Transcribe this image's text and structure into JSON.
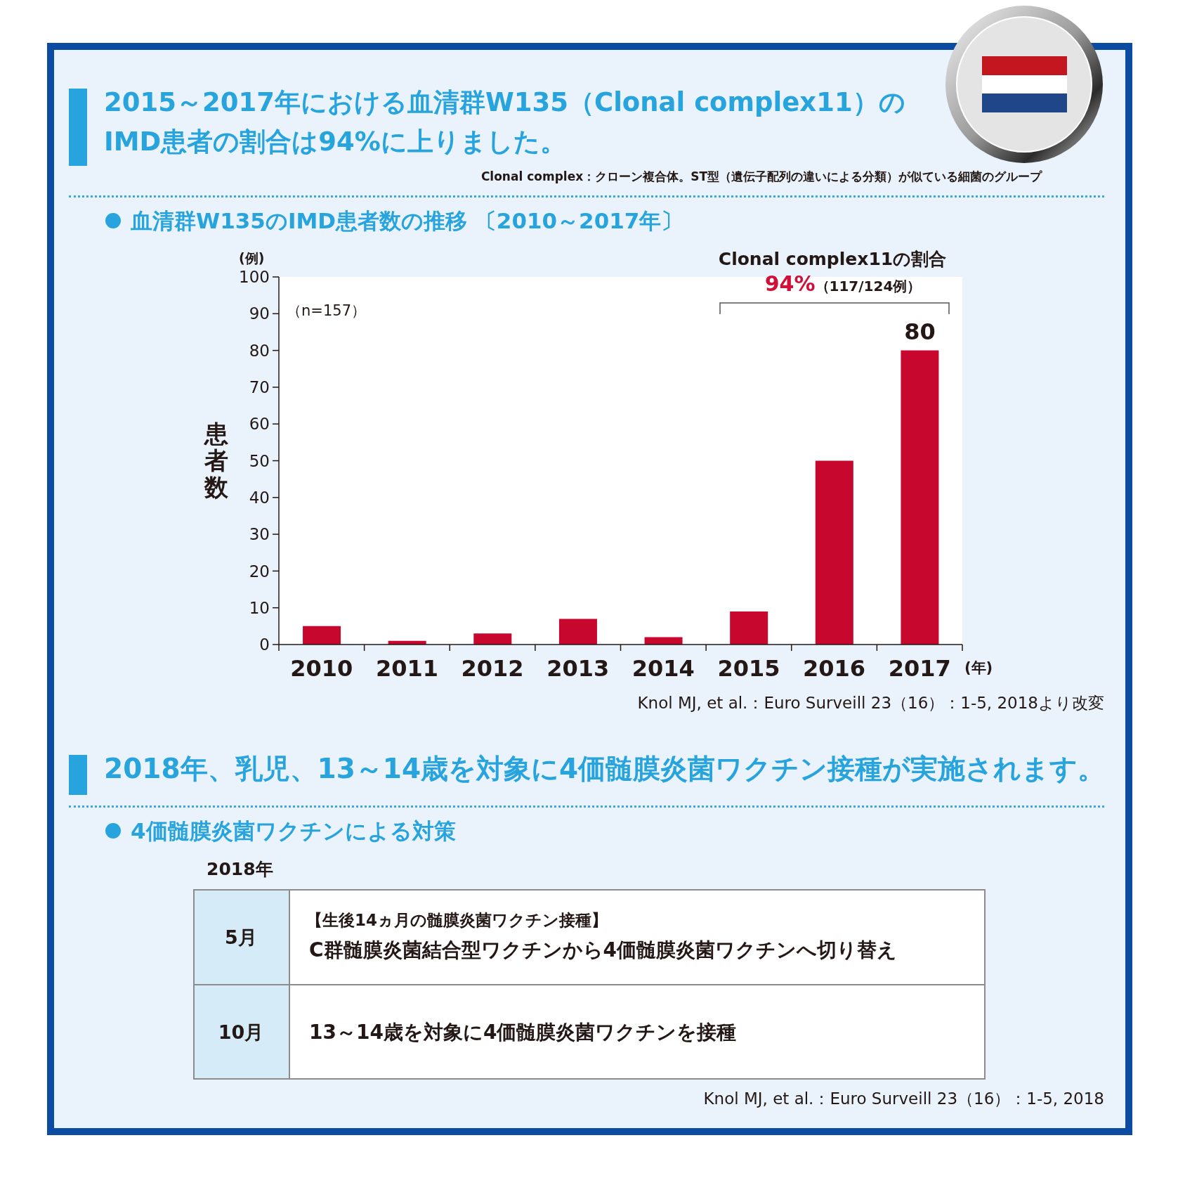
{
  "chart_data": [
    {
      "type": "bar",
      "title": "2015～2017年における血清群W135（Clonal complex11）のIMD患者の割合は94%に上りました。",
      "subtitle": "血清群W135のIMD患者数の推移 〔2010～2017年〕",
      "xlabel": "(年)",
      "ylabel": "患者数",
      "categories": [
        "2010",
        "2011",
        "2012",
        "2013",
        "2014",
        "2015",
        "2016",
        "2017"
      ],
      "values": [
        5,
        1,
        3,
        7,
        2,
        9,
        50,
        80
      ],
      "color": "#c8072e",
      "value_labels": [
        null,
        null,
        null,
        null,
        null,
        null,
        null,
        "80"
      ],
      "ylim": [
        0,
        100
      ],
      "yticks": [
        0,
        10,
        20,
        30,
        40,
        50,
        60,
        70,
        80,
        90,
        100
      ],
      "annotations": [
        "(例)",
        "（n=157）",
        "Clonal complex11の割合",
        "94%",
        "（117/124例）",
        "Clonal complex：クローン複合体。ST型（遺伝子配列の違いによる分類）が似ている細菌のグループ",
        "Knol MJ, et al.：Euro Surveill 23（16）：1-5, 2018より改変"
      ]
    },
    {
      "type": "other",
      "title": "2018年、乳児、13～14歳を対象に4価髄膜炎菌ワクチン接種が実施されます。",
      "subtitle": "4価髄膜炎菌ワクチンによる対策",
      "annotations": [
        "2018年",
        "5月",
        "【生後14ヵ月の髄膜炎菌ワクチン接種】",
        "C群髄膜炎菌結合型ワクチンから4価髄膜炎菌ワクチンへ切り替え",
        "10月",
        "13～14歳を対象に4価髄膜炎菌ワクチンを接種",
        "Knol MJ, et al.：Euro Surveill 23（16）：1-5, 2018"
      ]
    }
  ]
}
